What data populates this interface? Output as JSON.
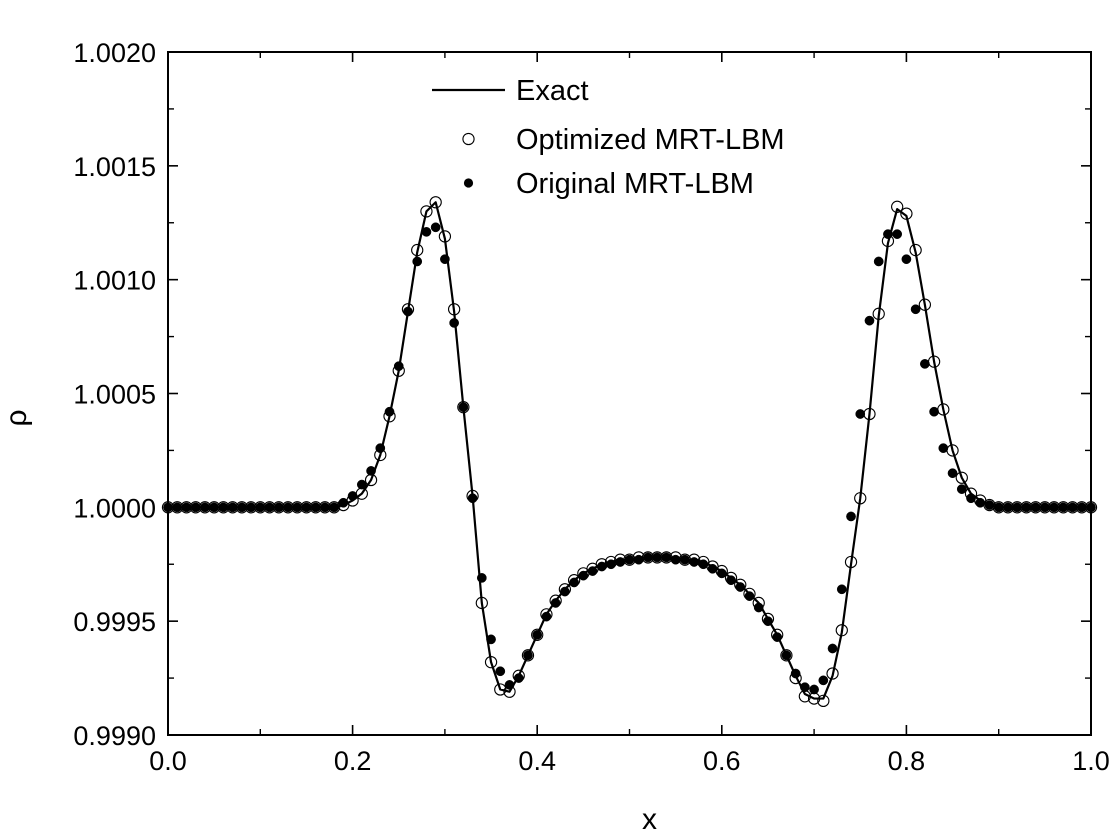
{
  "chart_data": {
    "type": "line",
    "title": "",
    "xlabel": "x",
    "ylabel": "ρ",
    "xlim": [
      0.0,
      1.0
    ],
    "ylim": [
      0.999,
      1.002
    ],
    "x_ticks": [
      "0.0",
      "0.2",
      "0.4",
      "0.6",
      "0.8",
      "1.0"
    ],
    "y_ticks": [
      "0.9990",
      "0.9995",
      "1.0000",
      "1.0005",
      "1.0010",
      "1.0015",
      "1.0020"
    ],
    "x_tick_values": [
      0.0,
      0.2,
      0.4,
      0.6,
      0.8,
      1.0
    ],
    "y_tick_values": [
      0.999,
      0.9995,
      1.0,
      1.0005,
      1.001,
      1.0015,
      1.002
    ],
    "grid": false,
    "legend_position": "top-center",
    "legend": [
      "Exact",
      "Optimized MRT-LBM",
      "Original MRT-LBM"
    ],
    "colors": {
      "line": "#000000",
      "background": "#ffffff"
    },
    "x": [
      0.0,
      0.01,
      0.02,
      0.03,
      0.04,
      0.05,
      0.06,
      0.07,
      0.08,
      0.09,
      0.1,
      0.11,
      0.12,
      0.13,
      0.14,
      0.15,
      0.16,
      0.17,
      0.18,
      0.19,
      0.2,
      0.21,
      0.22,
      0.23,
      0.24,
      0.25,
      0.26,
      0.27,
      0.28,
      0.29,
      0.3,
      0.31,
      0.32,
      0.33,
      0.34,
      0.35,
      0.36,
      0.37,
      0.38,
      0.39,
      0.4,
      0.41,
      0.42,
      0.43,
      0.44,
      0.45,
      0.46,
      0.47,
      0.48,
      0.49,
      0.5,
      0.51,
      0.52,
      0.53,
      0.54,
      0.55,
      0.56,
      0.57,
      0.58,
      0.59,
      0.6,
      0.61,
      0.62,
      0.63,
      0.64,
      0.65,
      0.66,
      0.67,
      0.68,
      0.69,
      0.7,
      0.71,
      0.72,
      0.73,
      0.74,
      0.75,
      0.76,
      0.77,
      0.78,
      0.79,
      0.8,
      0.81,
      0.82,
      0.83,
      0.84,
      0.85,
      0.86,
      0.87,
      0.88,
      0.89,
      0.9,
      0.91,
      0.92,
      0.93,
      0.94,
      0.95,
      0.96,
      0.97,
      0.98,
      0.99,
      1.0
    ],
    "series": [
      {
        "name": "Exact",
        "style": "line",
        "values": [
          1.0,
          1.0,
          1.0,
          1.0,
          1.0,
          1.0,
          1.0,
          1.0,
          1.0,
          1.0,
          1.0,
          1.0,
          1.0,
          1.0,
          1.0,
          1.0,
          1.0,
          1.0,
          1.0,
          1.00001,
          1.00003,
          1.00006,
          1.00012,
          1.00023,
          1.0004,
          1.0006,
          1.00086,
          1.00112,
          1.0013,
          1.00134,
          1.00118,
          1.00086,
          1.00044,
          1.00005,
          0.99958,
          0.99932,
          0.9992,
          0.99919,
          0.99926,
          0.99935,
          0.99944,
          0.99953,
          0.99959,
          0.99964,
          0.99968,
          0.99971,
          0.99973,
          0.99975,
          0.99976,
          0.99977,
          0.99977,
          0.99978,
          0.99978,
          0.99978,
          0.99978,
          0.99978,
          0.99977,
          0.99977,
          0.99976,
          0.99974,
          0.99972,
          0.99969,
          0.99966,
          0.99962,
          0.99958,
          0.99951,
          0.99944,
          0.99935,
          0.99926,
          0.99918,
          0.99916,
          0.99916,
          0.99926,
          0.99945,
          0.99975,
          1.00004,
          1.00041,
          1.00084,
          1.00116,
          1.00131,
          1.00128,
          1.00112,
          1.00089,
          1.00064,
          1.00043,
          1.00025,
          1.00013,
          1.00006,
          1.00003,
          1.00001,
          1.0,
          1.0,
          1.0,
          1.0,
          1.0,
          1.0,
          1.0,
          1.0,
          1.0,
          1.0,
          1.0
        ]
      },
      {
        "name": "Optimized MRT-LBM",
        "style": "open-circle",
        "values": [
          1.0,
          1.0,
          1.0,
          1.0,
          1.0,
          1.0,
          1.0,
          1.0,
          1.0,
          1.0,
          1.0,
          1.0,
          1.0,
          1.0,
          1.0,
          1.0,
          1.0,
          1.0,
          1.0,
          1.00001,
          1.00003,
          1.00006,
          1.00012,
          1.00023,
          1.0004,
          1.0006,
          1.00087,
          1.00113,
          1.0013,
          1.00134,
          1.00119,
          1.00087,
          1.00044,
          1.00005,
          0.99958,
          0.99932,
          0.9992,
          0.99919,
          0.99926,
          0.99935,
          0.99944,
          0.99953,
          0.99959,
          0.99964,
          0.99968,
          0.99971,
          0.99973,
          0.99975,
          0.99976,
          0.99977,
          0.99977,
          0.99978,
          0.99978,
          0.99978,
          0.99978,
          0.99978,
          0.99977,
          0.99977,
          0.99976,
          0.99974,
          0.99972,
          0.99969,
          0.99966,
          0.99962,
          0.99958,
          0.99951,
          0.99944,
          0.99935,
          0.99925,
          0.99917,
          0.99916,
          0.99915,
          0.99927,
          0.99946,
          0.99976,
          1.00004,
          1.00041,
          1.00085,
          1.00117,
          1.00132,
          1.00129,
          1.00113,
          1.00089,
          1.00064,
          1.00043,
          1.00025,
          1.00013,
          1.00006,
          1.00003,
          1.00001,
          1.0,
          1.0,
          1.0,
          1.0,
          1.0,
          1.0,
          1.0,
          1.0,
          1.0,
          1.0,
          1.0
        ]
      },
      {
        "name": "Original MRT-LBM",
        "style": "filled-circle",
        "values": [
          1.0,
          1.0,
          1.0,
          1.0,
          1.0,
          1.0,
          1.0,
          1.0,
          1.0,
          1.0,
          1.0,
          1.0,
          1.0,
          1.0,
          1.0,
          1.0,
          1.0,
          1.0,
          1.0,
          1.00002,
          1.00005,
          1.0001,
          1.00016,
          1.00026,
          1.00042,
          1.00062,
          1.00086,
          1.00108,
          1.00121,
          1.00123,
          1.00109,
          1.00081,
          1.00044,
          1.00004,
          0.99969,
          0.99942,
          0.99928,
          0.99922,
          0.99925,
          0.99935,
          0.99944,
          0.99952,
          0.99958,
          0.99963,
          0.99967,
          0.9997,
          0.99972,
          0.99974,
          0.99975,
          0.99976,
          0.99977,
          0.99977,
          0.99978,
          0.99978,
          0.99978,
          0.99977,
          0.99977,
          0.99976,
          0.99975,
          0.99973,
          0.99971,
          0.99968,
          0.99965,
          0.99961,
          0.99956,
          0.9995,
          0.99943,
          0.99935,
          0.99927,
          0.99921,
          0.9992,
          0.99924,
          0.99938,
          0.99964,
          0.99996,
          1.00041,
          1.00082,
          1.00108,
          1.0012,
          1.0012,
          1.00109,
          1.00087,
          1.00063,
          1.00042,
          1.00026,
          1.00015,
          1.00008,
          1.00004,
          1.00002,
          1.00001,
          1.0,
          1.0,
          1.0,
          1.0,
          1.0,
          1.0,
          1.0,
          1.0,
          1.0,
          1.0,
          1.0
        ]
      }
    ]
  }
}
